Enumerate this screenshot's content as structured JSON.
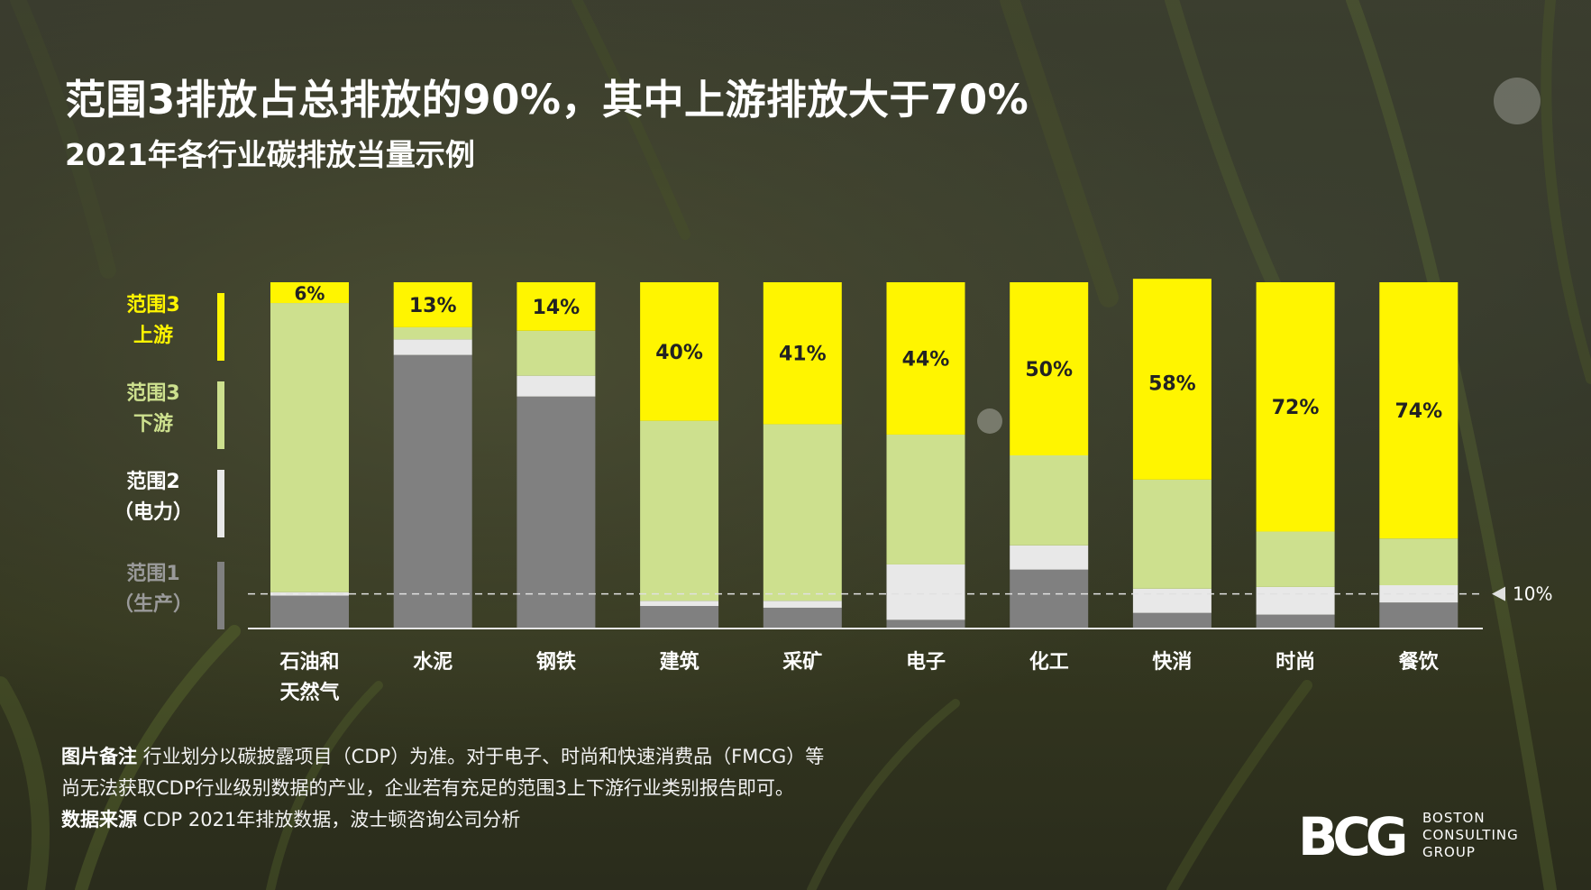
{
  "header": {
    "title": "范围3排放占总排放的90%，其中上游排放大于70%",
    "subtitle": "2021年各行业碳排放当量示例"
  },
  "legend": [
    {
      "line1": "范围3",
      "line2": "上游",
      "color": "#fff500"
    },
    {
      "line1": "范围3",
      "line2": "下游",
      "color": "#cde08e"
    },
    {
      "line1": "范围2",
      "line2": "（电力）",
      "color": "#e8e8e8"
    },
    {
      "line1": "范围1",
      "line2": "（生产）",
      "color": "#808080"
    }
  ],
  "chart_data": {
    "type": "bar",
    "stacked": true,
    "categories": [
      "石油和\n天然气",
      "水泥",
      "钢铁",
      "建筑",
      "采矿",
      "电子",
      "化工",
      "快消",
      "时尚",
      "餐饮"
    ],
    "series": [
      {
        "name": "范围1（生产）",
        "color": "#808080",
        "values": [
          9.5,
          79,
          67,
          6.5,
          6,
          2.5,
          17,
          4.5,
          4,
          7.5
        ]
      },
      {
        "name": "范围2（电力）",
        "color": "#e8e8e8",
        "values": [
          1,
          4.5,
          6,
          1.5,
          2,
          16,
          7,
          7,
          8,
          5
        ]
      },
      {
        "name": "范围3 下游",
        "color": "#cde08e",
        "values": [
          83.5,
          3.5,
          13,
          52,
          51,
          37.5,
          26,
          31.5,
          16,
          13.5
        ]
      },
      {
        "name": "范围3 上游",
        "color": "#fff500",
        "values": [
          6,
          13,
          14,
          40,
          41,
          44,
          50,
          58,
          72,
          74
        ]
      }
    ],
    "data_labels": [
      "6%",
      "13%",
      "14%",
      "40%",
      "41%",
      "44%",
      "50%",
      "58%",
      "72%",
      "74%"
    ],
    "reference_line": {
      "value": 10,
      "label": "10%"
    },
    "ylim": [
      0,
      100
    ],
    "grid": false
  },
  "notes": {
    "line1_lead": "图片备注",
    "line1_text": " 行业划分以碳披露项目（CDP）为准。对于电子、时尚和快速消费品（FMCG）等",
    "line2_text": "尚无法获取CDP行业级别数据的产业，企业若有充足的范围3上下游行业类别报告即可。",
    "line3_lead": "数据来源",
    "line3_text": " CDP 2021年排放数据，波士顿咨询公司分析"
  },
  "logo": {
    "mark": "BCG",
    "line1": "BOSTON",
    "line2": "CONSULTING",
    "line3": "GROUP"
  }
}
